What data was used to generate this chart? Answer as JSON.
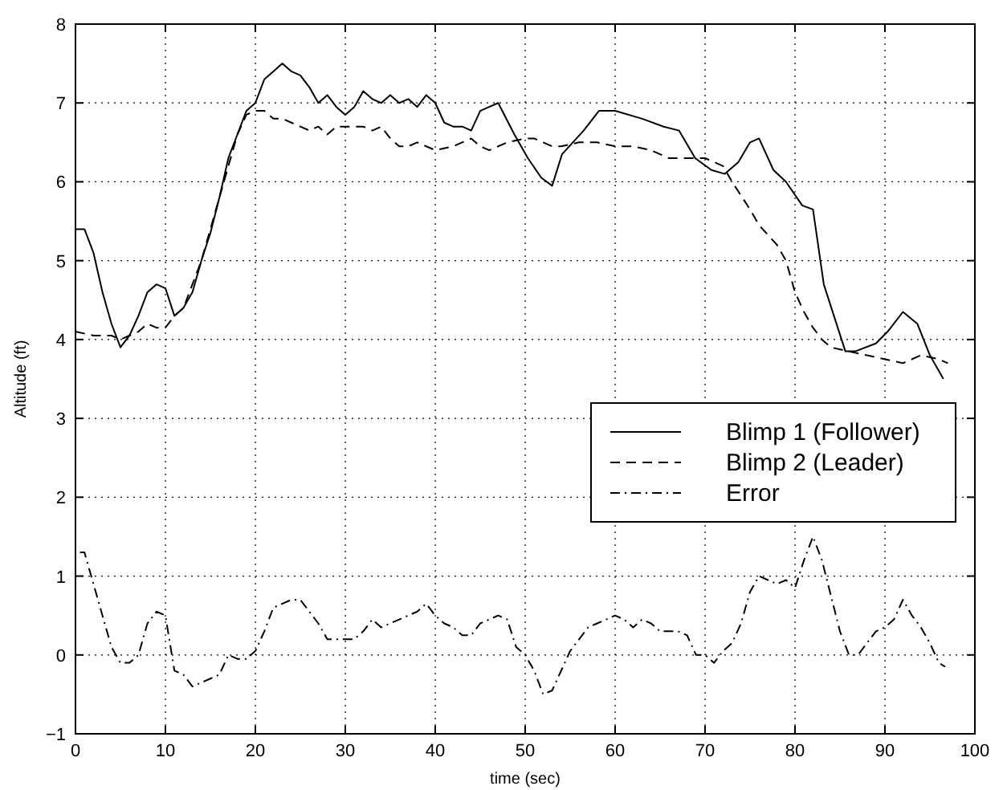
{
  "chart_data": {
    "type": "line",
    "xlabel": "time (sec)",
    "ylabel": "Altitude (ft)",
    "xlim": [
      0,
      100
    ],
    "ylim": [
      -1,
      8
    ],
    "xticks": [
      0,
      10,
      20,
      30,
      40,
      50,
      60,
      70,
      80,
      90,
      100
    ],
    "yticks": [
      -1,
      0,
      1,
      2,
      3,
      4,
      5,
      6,
      7,
      8
    ],
    "grid": true,
    "legend": "right",
    "series": [
      {
        "name": "Blimp 1 (Follower)",
        "color": "#000000",
        "line_style": "solid",
        "x": [
          0,
          1,
          2,
          3,
          4,
          5,
          6,
          7,
          8,
          9,
          10,
          11,
          12,
          13,
          14,
          15,
          16,
          17,
          18,
          19,
          20,
          21,
          22,
          23,
          24,
          25,
          26,
          27,
          28,
          29,
          30,
          31,
          32,
          33,
          34,
          35,
          36,
          37,
          38,
          39,
          40,
          41,
          42,
          43,
          44,
          45,
          46,
          47,
          48.8,
          50.3,
          51.8,
          53,
          54.1,
          56.5,
          58.2,
          60,
          63,
          65.4,
          67.1,
          68.9,
          70.7,
          72.2,
          73.7,
          75,
          76,
          77.6,
          79,
          80.8,
          82,
          83.2,
          85.6,
          86.7,
          89,
          90.3,
          92,
          93.6,
          95,
          96.5
        ],
        "values": [
          5.4,
          5.4,
          5.1,
          4.6,
          4.2,
          3.9,
          4.05,
          4.3,
          4.6,
          4.7,
          4.65,
          4.3,
          4.4,
          4.6,
          5.0,
          5.35,
          5.8,
          6.3,
          6.6,
          6.9,
          7.0,
          7.3,
          7.4,
          7.5,
          7.4,
          7.35,
          7.2,
          7.0,
          7.1,
          6.95,
          6.85,
          6.95,
          7.15,
          7.05,
          7.0,
          7.1,
          7.0,
          7.05,
          6.95,
          7.1,
          7.0,
          6.75,
          6.7,
          6.7,
          6.65,
          6.9,
          6.95,
          7.0,
          6.6,
          6.3,
          6.05,
          5.95,
          6.35,
          6.65,
          6.9,
          6.9,
          6.8,
          6.7,
          6.65,
          6.3,
          6.15,
          6.1,
          6.25,
          6.5,
          6.55,
          6.15,
          6.0,
          5.7,
          5.65,
          4.7,
          3.85,
          3.85,
          3.95,
          4.1,
          4.35,
          4.2,
          3.8,
          3.5
        ]
      },
      {
        "name": "Blimp 2 (Leader)",
        "color": "#000000",
        "line_style": "dashed",
        "x": [
          0,
          2,
          4,
          5,
          6,
          7,
          8,
          9,
          10,
          11,
          12,
          13,
          14,
          15,
          16,
          17,
          18,
          19,
          20,
          21,
          22,
          23,
          24,
          25,
          26,
          27,
          28,
          29,
          30,
          32,
          33,
          34,
          35,
          36,
          37,
          38,
          40,
          42,
          43,
          44,
          45,
          46,
          47,
          48,
          50,
          51,
          52,
          53,
          54,
          56,
          58,
          60,
          62,
          64,
          65,
          66,
          68,
          70,
          72,
          73,
          75,
          76,
          78,
          79,
          80,
          81,
          82,
          83,
          84,
          86,
          88,
          90,
          92,
          94,
          96,
          97
        ],
        "values": [
          4.1,
          4.05,
          4.05,
          4.0,
          4.05,
          4.1,
          4.2,
          4.15,
          4.15,
          4.3,
          4.4,
          4.7,
          5.0,
          5.4,
          5.8,
          6.2,
          6.6,
          6.85,
          6.9,
          6.9,
          6.8,
          6.8,
          6.75,
          6.7,
          6.65,
          6.7,
          6.6,
          6.7,
          6.7,
          6.7,
          6.65,
          6.7,
          6.55,
          6.45,
          6.45,
          6.5,
          6.4,
          6.45,
          6.5,
          6.55,
          6.45,
          6.4,
          6.45,
          6.5,
          6.55,
          6.55,
          6.5,
          6.45,
          6.45,
          6.5,
          6.5,
          6.45,
          6.45,
          6.4,
          6.35,
          6.3,
          6.3,
          6.3,
          6.2,
          6.0,
          5.65,
          5.45,
          5.2,
          5.0,
          4.6,
          4.35,
          4.15,
          4.0,
          3.9,
          3.85,
          3.8,
          3.75,
          3.7,
          3.8,
          3.75,
          3.7
        ]
      },
      {
        "name": "Error",
        "color": "#000000",
        "line_style": "dashdot",
        "x": [
          0.5,
          1,
          2,
          3,
          4,
          5,
          6,
          7,
          8,
          9,
          10,
          11,
          12,
          13,
          14,
          15,
          16,
          17,
          18,
          19,
          20,
          21,
          22,
          24,
          25,
          26,
          27,
          28,
          29,
          30,
          31,
          32,
          33,
          34,
          35,
          36,
          37,
          38,
          39,
          40,
          41,
          42,
          43,
          44,
          45,
          46,
          47,
          48,
          49,
          50,
          51,
          52,
          53,
          54,
          55,
          56,
          57,
          58,
          59,
          60,
          61,
          62,
          63,
          64,
          65,
          66,
          67,
          68,
          69,
          70,
          71,
          72,
          73,
          74,
          75,
          76,
          77,
          78,
          79,
          80,
          81,
          82,
          83,
          84,
          85,
          86,
          87,
          88,
          89,
          90,
          91,
          92,
          93,
          94,
          95,
          96,
          96.7
        ],
        "values": [
          1.3,
          1.3,
          0.9,
          0.5,
          0.1,
          -0.1,
          -0.1,
          0.0,
          0.4,
          0.55,
          0.5,
          -0.2,
          -0.25,
          -0.4,
          -0.35,
          -0.3,
          -0.25,
          0.0,
          -0.05,
          -0.05,
          0.05,
          0.3,
          0.6,
          0.7,
          0.7,
          0.55,
          0.4,
          0.2,
          0.2,
          0.2,
          0.2,
          0.3,
          0.45,
          0.35,
          0.4,
          0.45,
          0.5,
          0.55,
          0.65,
          0.5,
          0.4,
          0.35,
          0.25,
          0.25,
          0.4,
          0.45,
          0.5,
          0.45,
          0.1,
          0.0,
          -0.2,
          -0.5,
          -0.45,
          -0.2,
          0.05,
          0.2,
          0.35,
          0.4,
          0.45,
          0.5,
          0.45,
          0.35,
          0.45,
          0.4,
          0.3,
          0.3,
          0.3,
          0.25,
          0.0,
          0.0,
          -0.1,
          0.05,
          0.15,
          0.4,
          0.8,
          1.0,
          0.95,
          0.9,
          0.95,
          0.85,
          1.2,
          1.5,
          1.2,
          0.75,
          0.3,
          0.0,
          0.0,
          0.15,
          0.3,
          0.35,
          0.45,
          0.7,
          0.5,
          0.35,
          0.15,
          -0.1,
          -0.15
        ]
      }
    ]
  }
}
